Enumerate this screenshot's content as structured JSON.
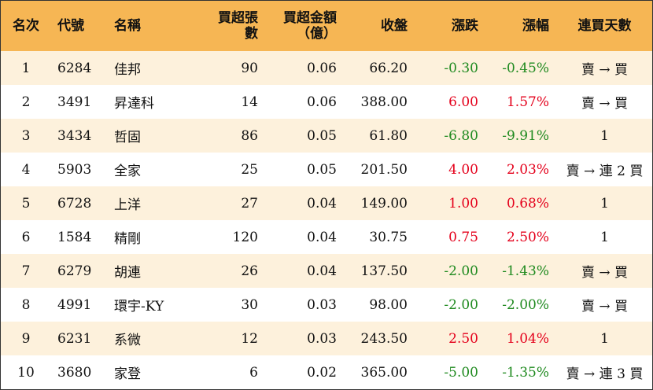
{
  "header": {
    "rank": "名次",
    "code": "代號",
    "name": "名稱",
    "volume": "買超張數",
    "amount_line1": "買超金額",
    "amount_line2": "（億）",
    "close": "收盤",
    "change": "漲跌",
    "pct": "漲幅",
    "days": "連買天數"
  },
  "colors": {
    "header_bg": "#f6b654",
    "stripe_bg": "#fdf1dc",
    "up": "#e4001b",
    "down": "#1f8a1f"
  },
  "rows": [
    {
      "rank": "1",
      "code": "6284",
      "name": "佳邦",
      "volume": "90",
      "amount": "0.06",
      "close": "66.20",
      "change": "-0.30",
      "pct": "-0.45%",
      "days": "賣 → 買",
      "dir": "down"
    },
    {
      "rank": "2",
      "code": "3491",
      "name": "昇達科",
      "volume": "14",
      "amount": "0.06",
      "close": "388.00",
      "change": "6.00",
      "pct": "1.57%",
      "days": "賣 → 買",
      "dir": "up"
    },
    {
      "rank": "3",
      "code": "3434",
      "name": "哲固",
      "volume": "86",
      "amount": "0.05",
      "close": "61.80",
      "change": "-6.80",
      "pct": "-9.91%",
      "days": "1",
      "dir": "down"
    },
    {
      "rank": "4",
      "code": "5903",
      "name": "全家",
      "volume": "25",
      "amount": "0.05",
      "close": "201.50",
      "change": "4.00",
      "pct": "2.03%",
      "days": "賣 → 連 2 買",
      "dir": "up"
    },
    {
      "rank": "5",
      "code": "6728",
      "name": "上洋",
      "volume": "27",
      "amount": "0.04",
      "close": "149.00",
      "change": "1.00",
      "pct": "0.68%",
      "days": "1",
      "dir": "up"
    },
    {
      "rank": "6",
      "code": "1584",
      "name": "精剛",
      "volume": "120",
      "amount": "0.04",
      "close": "30.75",
      "change": "0.75",
      "pct": "2.50%",
      "days": "1",
      "dir": "up"
    },
    {
      "rank": "7",
      "code": "6279",
      "name": "胡連",
      "volume": "26",
      "amount": "0.04",
      "close": "137.50",
      "change": "-2.00",
      "pct": "-1.43%",
      "days": "賣 → 買",
      "dir": "down"
    },
    {
      "rank": "8",
      "code": "4991",
      "name": "環宇-KY",
      "volume": "30",
      "amount": "0.03",
      "close": "98.00",
      "change": "-2.00",
      "pct": "-2.00%",
      "days": "賣 → 買",
      "dir": "down"
    },
    {
      "rank": "9",
      "code": "6231",
      "name": "系微",
      "volume": "12",
      "amount": "0.03",
      "close": "243.50",
      "change": "2.50",
      "pct": "1.04%",
      "days": "1",
      "dir": "up"
    },
    {
      "rank": "10",
      "code": "3680",
      "name": "家登",
      "volume": "6",
      "amount": "0.02",
      "close": "365.00",
      "change": "-5.00",
      "pct": "-1.35%",
      "days": "賣 → 連 3 買",
      "dir": "down"
    }
  ]
}
